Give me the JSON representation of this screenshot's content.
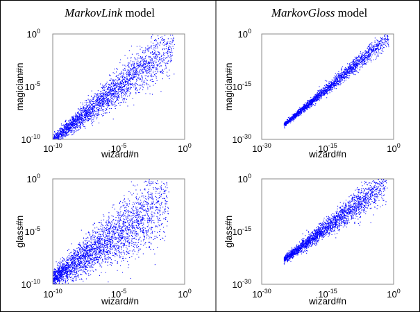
{
  "columns": [
    {
      "title_italic": "MarkovLink",
      "title_rest": " model"
    },
    {
      "title_italic": "MarkovGloss",
      "title_rest": " model"
    }
  ],
  "colors": {
    "points": "#0000ff",
    "frame": "#000000",
    "axes": "#888888"
  },
  "chart_data": [
    {
      "type": "scatter",
      "xlabel": "wizard#n",
      "ylabel": "magician#n",
      "log_scale": true,
      "xlim_exp": [
        -10,
        0
      ],
      "ylim_exp": [
        -10,
        0
      ],
      "x_ticks": [
        {
          "base": "10",
          "exp": "-10"
        },
        {
          "base": "10",
          "exp": "-5"
        },
        {
          "base": "10",
          "exp": "0"
        }
      ],
      "y_ticks": [
        {
          "base": "10",
          "exp": "-10"
        },
        {
          "base": "10",
          "exp": "-5"
        },
        {
          "base": "10",
          "exp": "0"
        }
      ],
      "cloud": {
        "x_exp_range": [
          -10,
          -0.8
        ],
        "slope": 1.0,
        "intercept": 0,
        "spread": [
          0.25,
          1.3
        ],
        "count": 2600
      }
    },
    {
      "type": "scatter",
      "xlabel": "wizard#n",
      "ylabel": "magician#n",
      "log_scale": true,
      "xlim_exp": [
        -30,
        0
      ],
      "ylim_exp": [
        -30,
        0
      ],
      "x_ticks": [
        {
          "base": "10",
          "exp": "-30"
        },
        {
          "base": "10",
          "exp": "-15"
        },
        {
          "base": "10",
          "exp": "0"
        }
      ],
      "y_ticks": [
        {
          "base": "10",
          "exp": "-30"
        },
        {
          "base": "10",
          "exp": "-15"
        },
        {
          "base": "10",
          "exp": "0"
        }
      ],
      "cloud": {
        "x_exp_range": [
          -25,
          -1
        ],
        "slope": 1.05,
        "intercept": 0.5,
        "spread": [
          0.3,
          1.4
        ],
        "count": 2200
      }
    },
    {
      "type": "scatter",
      "xlabel": "wizard#n",
      "ylabel": "glass#n",
      "log_scale": true,
      "xlim_exp": [
        -10,
        0
      ],
      "ylim_exp": [
        -10,
        0
      ],
      "x_ticks": [
        {
          "base": "10",
          "exp": "-10"
        },
        {
          "base": "10",
          "exp": "-5"
        },
        {
          "base": "10",
          "exp": "0"
        }
      ],
      "y_ticks": [
        {
          "base": "10",
          "exp": "-10"
        },
        {
          "base": "10",
          "exp": "-5"
        },
        {
          "base": "10",
          "exp": "0"
        }
      ],
      "cloud": {
        "x_exp_range": [
          -10,
          -1.2
        ],
        "slope": 0.85,
        "intercept": -0.9,
        "spread": [
          0.4,
          2.0
        ],
        "count": 3000
      }
    },
    {
      "type": "scatter",
      "xlabel": "wizard#n",
      "ylabel": "glass#n",
      "log_scale": true,
      "xlim_exp": [
        -30,
        0
      ],
      "ylim_exp": [
        -30,
        0
      ],
      "x_ticks": [
        {
          "base": "10",
          "exp": "-30"
        },
        {
          "base": "10",
          "exp": "-15"
        },
        {
          "base": "10",
          "exp": "0"
        }
      ],
      "y_ticks": [
        {
          "base": "10",
          "exp": "-30"
        },
        {
          "base": "10",
          "exp": "-15"
        },
        {
          "base": "10",
          "exp": "0"
        }
      ],
      "cloud": {
        "x_exp_range": [
          -25,
          -1.5
        ],
        "slope": 0.95,
        "intercept": 0.8,
        "spread": [
          0.5,
          2.6
        ],
        "count": 2400
      }
    }
  ]
}
